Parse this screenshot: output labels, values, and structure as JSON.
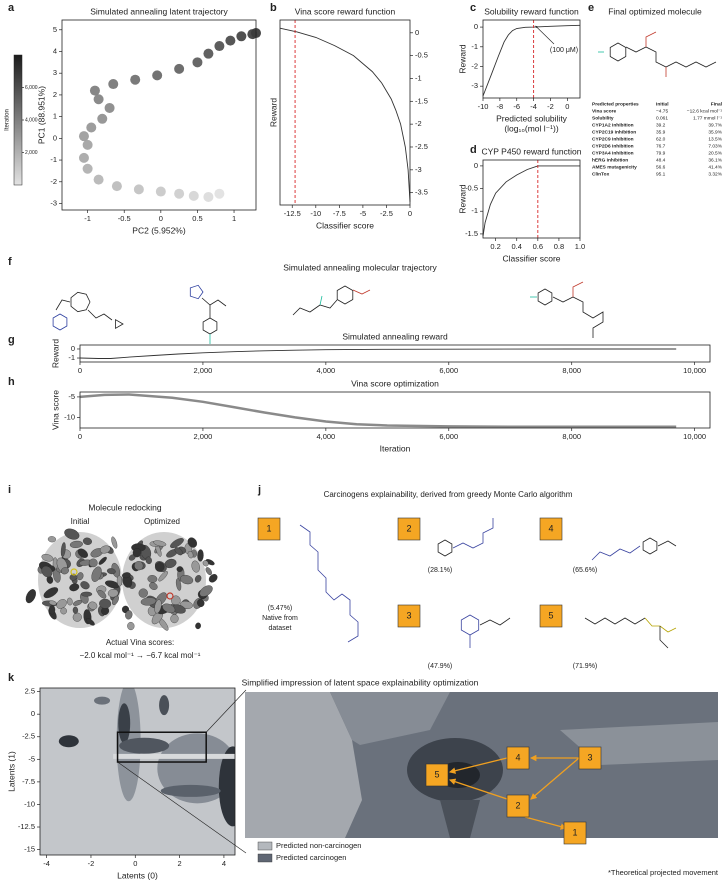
{
  "panel_labels": [
    "a",
    "b",
    "c",
    "d",
    "e",
    "f",
    "g",
    "h",
    "i",
    "j",
    "k"
  ],
  "chart_data": [
    {
      "type": "scatter",
      "title": "Simulated annealing latent trajectory",
      "xlabel": "PC2 (5.952%)",
      "ylabel": "PC1 (88.951%)",
      "x": [
        0.8,
        0.65,
        0.45,
        0.25,
        0.0,
        -0.3,
        -0.6,
        -0.85,
        -1.0,
        -1.05,
        -1.0,
        -1.05,
        -0.95,
        -0.8,
        -0.7,
        -0.85,
        -0.9,
        -0.65,
        -0.35,
        -0.05,
        0.25,
        0.5,
        0.65,
        0.8,
        0.95,
        1.1,
        1.25,
        1.3
      ],
      "values": [
        -2.55,
        -2.7,
        -2.65,
        -2.55,
        -2.45,
        -2.35,
        -2.2,
        -1.9,
        -1.4,
        -0.9,
        -0.3,
        0.1,
        0.5,
        0.9,
        1.4,
        1.8,
        2.2,
        2.5,
        2.7,
        2.9,
        3.2,
        3.5,
        3.9,
        4.25,
        4.5,
        4.7,
        4.8,
        4.85
      ],
      "iteration": [
        0,
        250,
        500,
        750,
        1000,
        1250,
        1500,
        1750,
        2000,
        2250,
        2500,
        2750,
        3000,
        3250,
        3500,
        3750,
        4000,
        4250,
        4500,
        4750,
        5000,
        5250,
        5500,
        5750,
        6000,
        6250,
        6500,
        6750
      ],
      "xlim": [
        -1.35,
        1.3
      ],
      "xticks": [
        -1,
        -0.5,
        0,
        0.5,
        1
      ],
      "ylim": [
        -3.3,
        5.45
      ],
      "yticks": [
        -3,
        -2,
        -1,
        0,
        1,
        2,
        3,
        4,
        5
      ],
      "colorbar": {
        "label": "Iteration",
        "lim": [
          0,
          8000
        ],
        "ticks": [
          {
            "value": 2000,
            "label": "2,000"
          },
          {
            "value": 4000,
            "label": "4,000"
          },
          {
            "value": 6000,
            "label": "6,000"
          }
        ],
        "colors": [
          "#e2e2e2",
          "#1c1c1c"
        ]
      }
    },
    {
      "type": "line",
      "title": "Vina score reward function",
      "xlabel": "Classifier score",
      "ylabel": "Reward",
      "color": "#333333",
      "yaxis": "right",
      "x": [
        -13.8,
        -12,
        -10,
        -8,
        -6,
        -4,
        -3,
        -2,
        -1.5,
        -1,
        -0.5,
        -0.2,
        0
      ],
      "values": [
        0.1,
        0.02,
        -0.1,
        -0.28,
        -0.5,
        -0.85,
        -1.1,
        -1.45,
        -1.7,
        -2.0,
        -2.5,
        -3.0,
        -3.7
      ],
      "xlim": [
        -13.8,
        0
      ],
      "xticks": [
        -12.5,
        -10,
        -7.5,
        -5,
        -2.5,
        0
      ],
      "ylim": [
        -3.77,
        0.28
      ],
      "yticks": [
        0,
        -0.5,
        -1,
        -1.5,
        -2,
        -2.5,
        -3,
        -3.5
      ],
      "vline": -12.2,
      "vline_color": "#d62728"
    },
    {
      "type": "line",
      "title": "Solubility reward function",
      "xlabel": [
        "Predicted solubility",
        "(log₁₀(mol l⁻¹))"
      ],
      "ylabel": "Reward",
      "color": "#333333",
      "annotation": "(100 μM)",
      "x": [
        -10,
        -9,
        -8.2,
        -7.5,
        -7,
        -6.5,
        -6,
        -5,
        -4,
        -2,
        0,
        1.5
      ],
      "values": [
        -3.5,
        -2.4,
        -1.5,
        -0.75,
        -0.4,
        -0.18,
        -0.07,
        -0.01,
        0,
        0.04,
        0.07,
        0.09
      ],
      "xlim": [
        -10,
        1.5
      ],
      "xticks": [
        -10,
        -8,
        -6,
        -4,
        -2,
        0
      ],
      "ylim": [
        -3.6,
        0.36
      ],
      "yticks": [
        0,
        -1,
        -2,
        -3
      ],
      "vline": -4,
      "vline_color": "#d62728"
    },
    {
      "type": "line",
      "title": "CYP P450 reward function",
      "xlabel": "Classifier score",
      "ylabel": "Reward",
      "color": "#333333",
      "x": [
        0.08,
        0.1,
        0.15,
        0.2,
        0.3,
        0.4,
        0.5,
        0.6,
        0.8,
        1.0
      ],
      "values": [
        -1.55,
        -1.25,
        -0.85,
        -0.6,
        -0.35,
        -0.2,
        -0.08,
        0,
        0,
        0
      ],
      "xlim": [
        0.08,
        1.0
      ],
      "xticks": [
        0.2,
        0.4,
        0.6,
        0.8,
        {
          "value": 1,
          "label": "1.0"
        }
      ],
      "ylim": [
        -1.59,
        0.13
      ],
      "yticks": [
        0,
        -0.5,
        -1,
        -1.5
      ],
      "vline": 0.6,
      "vline_color": "#d62728"
    },
    {
      "type": "line",
      "title": "Simulated annealing reward",
      "ylabel": "Reward",
      "color": "#333333",
      "x": [
        0,
        300,
        500,
        800,
        1200,
        1600,
        2000,
        2500,
        3000,
        3500,
        4000,
        5000,
        6000,
        7000,
        8000,
        9700
      ],
      "values": [
        -1.0,
        -1.05,
        -1.05,
        -0.9,
        -0.72,
        -0.55,
        -0.42,
        -0.3,
        -0.2,
        -0.13,
        -0.08,
        -0.04,
        -0.02,
        -0.01,
        0,
        0
      ],
      "xlim": [
        0,
        10250
      ],
      "xticks": [
        0,
        {
          "value": 2000,
          "label": "2,000"
        },
        {
          "value": 4000,
          "label": "4,000"
        },
        {
          "value": 6000,
          "label": "6,000"
        },
        {
          "value": 8000,
          "label": "8,000"
        },
        {
          "value": 10000,
          "label": "10,000"
        }
      ],
      "ylim": [
        -1.44,
        0.44
      ],
      "yticks": [
        0,
        -1
      ]
    },
    {
      "type": "line",
      "title": "Vina score optimization",
      "xlabel": "Iteration",
      "ylabel": "Vina score",
      "color": "#8a8a8a",
      "x": [
        0,
        400,
        800,
        1500,
        2000,
        2500,
        3000,
        3500,
        4000,
        4500,
        5000,
        6000,
        7000,
        8000,
        9700
      ],
      "values": [
        -5,
        -4.5,
        -4.4,
        -5.2,
        -6.2,
        -7.5,
        -8.8,
        -10,
        -11,
        -11.7,
        -12,
        -12.2,
        -12.3,
        -12.3,
        -12.3
      ],
      "xlim": [
        0,
        10250
      ],
      "xticks": [
        0,
        {
          "value": 2000,
          "label": "2,000"
        },
        {
          "value": 4000,
          "label": "4,000"
        },
        {
          "value": 6000,
          "label": "6,000"
        },
        {
          "value": 8000,
          "label": "8,000"
        },
        {
          "value": 10000,
          "label": "10,000"
        }
      ],
      "ylim": [
        -12.6,
        -3.8
      ],
      "yticks": [
        -5,
        -10
      ]
    },
    {
      "type": "contour",
      "xlabel": "Latents (0)",
      "ylabel": "Latents (1)",
      "xlim": [
        -4.3,
        4.5
      ],
      "xticks": [
        -4,
        -2,
        0,
        2,
        4
      ],
      "ylim": [
        -15.6,
        2.9
      ],
      "yticks": [
        2.5,
        0,
        -2.5,
        -5,
        -7.5,
        -10,
        -12.5,
        -15
      ],
      "zoom_box": {
        "x": [
          -0.8,
          3.2
        ],
        "y": [
          -5.3,
          -2
        ]
      }
    }
  ],
  "table_e": {
    "title": "Final optimized molecule",
    "header": [
      "Predicted properties",
      "Initial",
      "Final"
    ],
    "rows": [
      [
        "Vina score",
        "−4.75",
        "−12.6 kcal mol⁻¹"
      ],
      [
        "Solubility",
        "0.061",
        "1.77 mmol l⁻¹"
      ],
      [
        "CYP1A2 inhibition",
        "39.2",
        "39.7%"
      ],
      [
        "CYP2C19 inhibition",
        "35.9",
        "35.9%"
      ],
      [
        "CYP2C9 inhibition",
        "62.0",
        "13.5%"
      ],
      [
        "CYP2D6 inhibition",
        "76.7",
        "7.03%"
      ],
      [
        "CYP3A4 inhibition",
        "79.9",
        "20.5%"
      ],
      [
        "hERG inhibition",
        "48.4",
        "36.1%"
      ],
      [
        "AMES mutagenicity",
        "56.6",
        "41.4%"
      ],
      [
        "ClinTox",
        "95.1",
        "3.32%"
      ]
    ]
  },
  "panel_f": {
    "title": "Simulated annealing molecular trajectory"
  },
  "panel_i": {
    "title": "Molecule redocking",
    "initial": "Initial",
    "optimized": "Optimized",
    "caption": "Actual Vina scores:",
    "scores": "−2.0 kcal mol⁻¹ → −6.7 kcal mol⁻¹"
  },
  "panel_j": {
    "title": "Carcinogens explainability, derived from greedy Monte Carlo algorithm",
    "boxes": [
      {
        "label": "1",
        "note": [
          "(5.47%)",
          "Native from",
          "dataset"
        ]
      },
      {
        "label": "2",
        "note": [
          "(28.1%)"
        ]
      },
      {
        "label": "4",
        "note": [
          "(65.6%)"
        ]
      },
      {
        "label": "3",
        "note": [
          "(47.9%)"
        ]
      },
      {
        "label": "5",
        "note": [
          "(71.9%)"
        ]
      }
    ]
  },
  "panel_k": {
    "title": "Simplified impression of latent space explainability optimization",
    "boxes": [
      "5",
      "4",
      "3",
      "2",
      "1"
    ],
    "legend": [
      {
        "name": "Predicted non-carcinogen",
        "color": "#b4b8bd"
      },
      {
        "name": "Predicted carcinogen",
        "color": "#5f6673"
      }
    ],
    "note": "*Theoretical projected movement"
  }
}
